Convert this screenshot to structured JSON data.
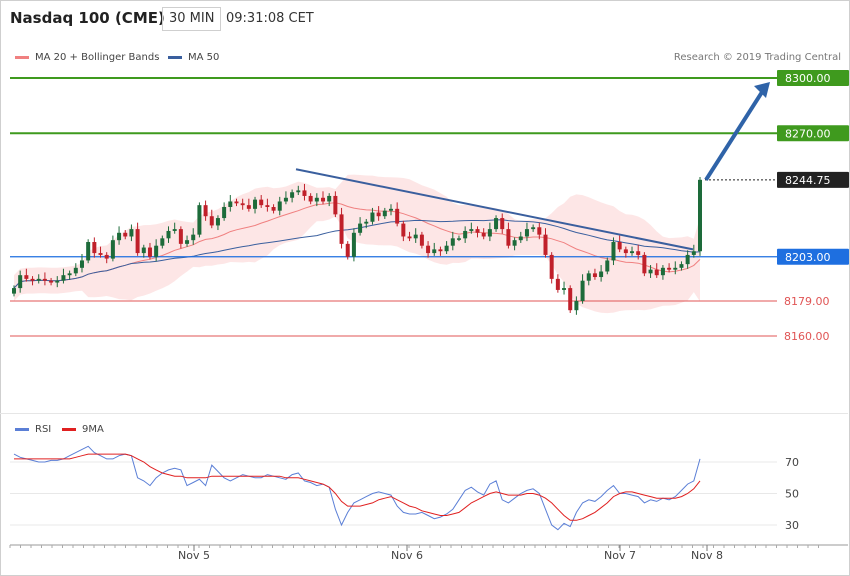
{
  "header": {
    "title": "Nasdaq 100 (CME)",
    "interval": "30 MIN",
    "time": "09:31:08 CET"
  },
  "legend": {
    "ma20": "MA 20 + Bollinger Bands",
    "ma50": "MA 50",
    "ma20_color": "#f08080",
    "ma50_color": "#3a5f9e"
  },
  "copyright": "Research © 2019 Trading Central",
  "rsi_legend": {
    "rsi": "RSI",
    "ma9": "9MA",
    "rsi_color": "#5b7fd6",
    "ma9_color": "#e02020"
  },
  "chart_data": {
    "type": "candlestick",
    "instrument": "Nasdaq 100 (CME)",
    "interval": "30 MIN",
    "xticks": [
      "Nov 5",
      "Nov 6",
      "Nov 7",
      "Nov 8"
    ],
    "levels": [
      {
        "value": 8300.0,
        "label": "8300.00",
        "kind": "resistance",
        "color": "#3f9a1e"
      },
      {
        "value": 8270.0,
        "label": "8270.00",
        "kind": "resistance",
        "color": "#3f9a1e"
      },
      {
        "value": 8244.75,
        "label": "8244.75",
        "kind": "last",
        "color": "#222222"
      },
      {
        "value": 8203.0,
        "label": "8203.00",
        "kind": "pivot",
        "color": "#1e6fe0"
      },
      {
        "value": 8179.0,
        "label": "8179.00",
        "kind": "support",
        "color": "#e05555"
      },
      {
        "value": 8160.0,
        "label": "8160.00",
        "kind": "support",
        "color": "#e05555"
      }
    ],
    "price_range": [
      8130,
      8315
    ],
    "trendline": {
      "from": 8250.5,
      "to": 8207.0,
      "label": "falling resistance"
    },
    "target_arrow": {
      "from": 8244.75,
      "to": 8300.0
    },
    "candles_close": [
      8186,
      8193,
      8191,
      8190,
      8191,
      8190,
      8189,
      8190,
      8193,
      8194,
      8197,
      8201,
      8211,
      8205,
      8204,
      8202,
      8212,
      8216,
      8214,
      8218,
      8205,
      8208,
      8203,
      8209,
      8213,
      8217,
      8218,
      8210,
      8212,
      8215,
      8231,
      8225,
      8220,
      8224,
      8230,
      8233,
      8232,
      8231,
      8229,
      8234,
      8231,
      8230,
      8228,
      8233,
      8235,
      8238,
      8239,
      8236,
      8233,
      8235,
      8233,
      8236,
      8226,
      8210,
      8203,
      8216,
      8221,
      8222,
      8227,
      8225,
      8228,
      8229,
      8221,
      8214,
      8213,
      8215,
      8209,
      8205,
      8207,
      8206,
      8209,
      8213,
      8213,
      8217,
      8218,
      8216,
      8214,
      8218,
      8224,
      8218,
      8209,
      8212,
      8214,
      8218,
      8219,
      8215,
      8204,
      8191,
      8185,
      8186,
      8174,
      8179,
      8190,
      8194,
      8192,
      8195,
      8201,
      8211,
      8207,
      8205,
      8206,
      8204,
      8194,
      8196,
      8193,
      8197,
      8196,
      8197,
      8199,
      8204,
      8206,
      8244.75
    ],
    "rsi": {
      "yticks": [
        70,
        50,
        30
      ],
      "range": [
        15,
        90
      ],
      "values": [
        75,
        73,
        72,
        71,
        70,
        70,
        71,
        71,
        72,
        74,
        76,
        78,
        80,
        76,
        74,
        72,
        72,
        74,
        75,
        74,
        60,
        58,
        55,
        60,
        63,
        65,
        66,
        65,
        55,
        57,
        59,
        55,
        68,
        64,
        60,
        58,
        60,
        62,
        61,
        60,
        60,
        62,
        61,
        60,
        59,
        62,
        63,
        58,
        57,
        55,
        56,
        54,
        40,
        30,
        38,
        44,
        46,
        48,
        50,
        51,
        50,
        49,
        42,
        38,
        37,
        37,
        38,
        36,
        34,
        35,
        37,
        40,
        46,
        52,
        54,
        51,
        49,
        56,
        58,
        46,
        44,
        47,
        50,
        52,
        53,
        50,
        40,
        30,
        27,
        31,
        29,
        38,
        44,
        46,
        45,
        48,
        52,
        55,
        50,
        50,
        49,
        48,
        44,
        46,
        45,
        47,
        46,
        48,
        52,
        56,
        58,
        72
      ],
      "ma9": [
        72,
        72,
        72,
        72,
        72,
        72,
        72,
        72,
        72,
        72,
        73,
        74,
        75,
        75,
        75,
        75,
        75,
        75,
        75,
        74,
        72,
        70,
        67,
        65,
        63,
        62,
        61,
        61,
        60,
        60,
        60,
        60,
        61,
        61,
        61,
        61,
        61,
        61,
        61,
        61,
        61,
        61,
        61,
        61,
        60,
        60,
        60,
        59,
        58,
        57,
        56,
        54,
        50,
        45,
        42,
        42,
        42,
        43,
        44,
        46,
        47,
        48,
        46,
        44,
        42,
        41,
        39,
        38,
        37,
        36,
        36,
        37,
        38,
        41,
        44,
        46,
        48,
        50,
        51,
        50,
        49,
        49,
        49,
        50,
        50,
        49,
        47,
        44,
        40,
        36,
        33,
        33,
        34,
        36,
        38,
        41,
        44,
        48,
        50,
        51,
        51,
        50,
        49,
        48,
        47,
        47,
        47,
        47,
        48,
        50,
        53,
        58
      ]
    }
  }
}
